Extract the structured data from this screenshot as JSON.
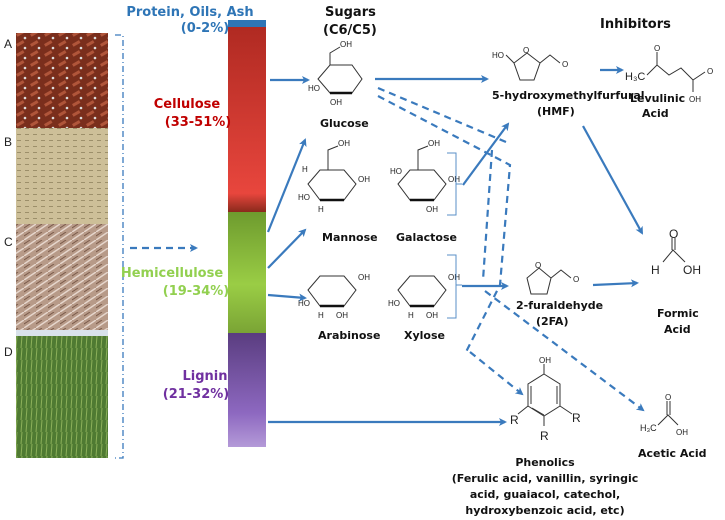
{
  "photos": [
    {
      "label": "A"
    },
    {
      "label": "B"
    },
    {
      "label": "C"
    },
    {
      "label": "D"
    }
  ],
  "components": {
    "protein": {
      "name": "Protein, Oils, Ash",
      "range": "(0-2%)",
      "color": "#2e75b6"
    },
    "cellulose": {
      "name": "Cellulose",
      "range": "(33-51%)",
      "color": "#c00000"
    },
    "hemicellulose": {
      "name": "Hemicellulose",
      "range": "(19-34%)",
      "color": "#92d050"
    },
    "lignin": {
      "name": "Lignin",
      "range": "(21-32%)",
      "color": "#7030a0"
    }
  },
  "sugars": {
    "title_line1": "Sugars",
    "title_line2": "(C6/C5)",
    "glucose": "Glucose",
    "mannose": "Mannose",
    "galactose": "Galactose",
    "arabinose": "Arabinose",
    "xylose": "Xylose"
  },
  "inhibitors": {
    "title": "Inhibitors",
    "hmf": {
      "line1": "5-hydroxymethylfurfural",
      "line2": "(HMF)"
    },
    "levulinic": {
      "line1": "Levulinic",
      "line2": "Acid"
    },
    "formic": {
      "line1": "Formic",
      "line2": "Acid"
    },
    "furaldehyde": {
      "line1": "2-furaldehyde",
      "line2": "(2FA)"
    },
    "acetic": {
      "line1": "Acetic Acid"
    },
    "phenolics": {
      "title": "Phenolics",
      "lines": [
        "(Ferulic acid, vanillin, syringic",
        "acid, guaiacol, catechol,",
        "hydroxybenzoic acid, etc)"
      ]
    }
  },
  "atoms": {
    "oh": "OH",
    "ho": "HO",
    "h": "H",
    "o": "O",
    "r": "R",
    "h3c": "H₃C"
  },
  "colors": {
    "arrow": "#3a7abd"
  }
}
